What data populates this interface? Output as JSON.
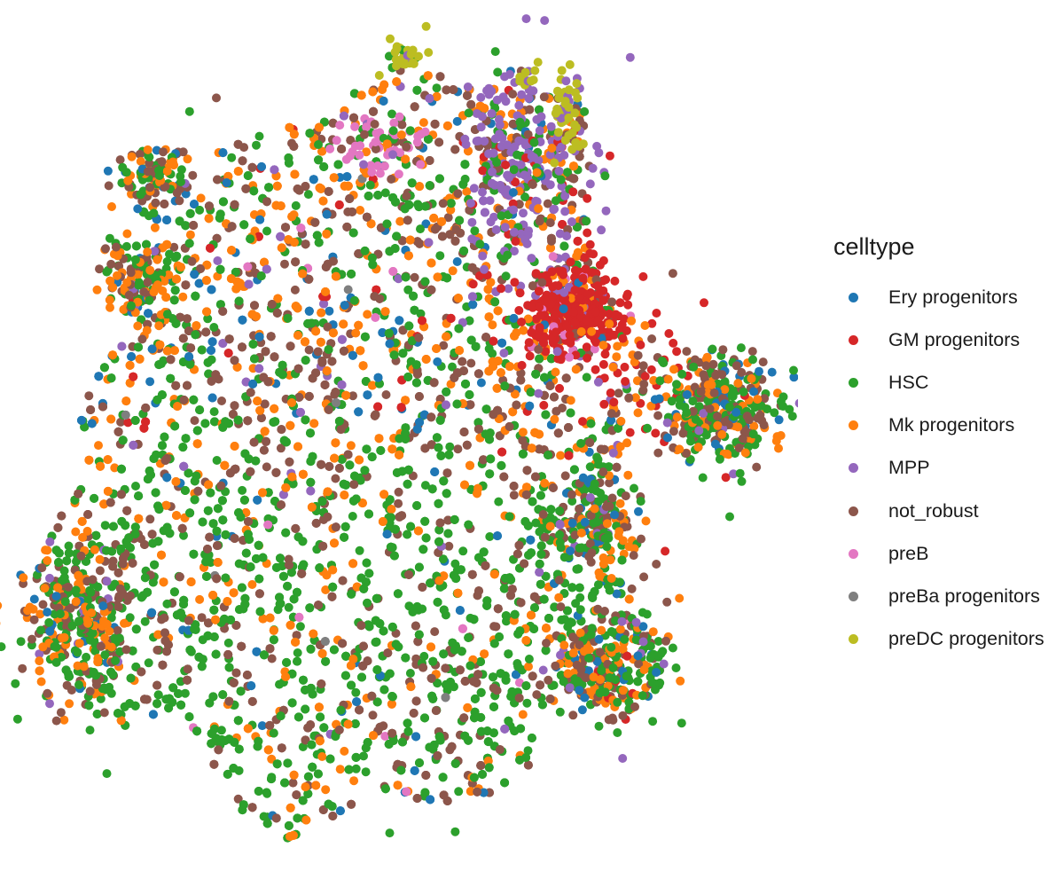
{
  "chart_data": {
    "type": "scatter",
    "title": "",
    "xlabel": "",
    "ylabel": "",
    "axes_visible": false,
    "grid": false,
    "legend_position": "right",
    "legend": {
      "title": "celltype",
      "entries": [
        {
          "label": "Ery progenitors",
          "color": "#1F77B4"
        },
        {
          "label": "GM progenitors",
          "color": "#D62728"
        },
        {
          "label": "HSC",
          "color": "#2CA02C"
        },
        {
          "label": "Mk progenitors",
          "color": "#FF7F0E"
        },
        {
          "label": "MPP",
          "color": "#9467BD"
        },
        {
          "label": "not_robust",
          "color": "#8C564B"
        },
        {
          "label": "preB",
          "color": "#E377C2"
        },
        {
          "label": "preBa progenitors",
          "color": "#7F7F7F"
        },
        {
          "label": "preDC progenitors",
          "color": "#BCBD22"
        }
      ]
    },
    "series": [
      {
        "name": "Ery progenitors",
        "color": "#1F77B4",
        "approx_count": 350
      },
      {
        "name": "GM progenitors",
        "color": "#D62728",
        "approx_count": 480
      },
      {
        "name": "HSC",
        "color": "#2CA02C",
        "approx_count": 3000
      },
      {
        "name": "Mk progenitors",
        "color": "#FF7F0E",
        "approx_count": 1800
      },
      {
        "name": "MPP",
        "color": "#9467BD",
        "approx_count": 320
      },
      {
        "name": "not_robust",
        "color": "#8C564B",
        "approx_count": 2200
      },
      {
        "name": "preB",
        "color": "#E377C2",
        "approx_count": 70
      },
      {
        "name": "preBa progenitors",
        "color": "#7F7F7F",
        "approx_count": 40
      },
      {
        "name": "preDC progenitors",
        "color": "#BCBD22",
        "approx_count": 50
      }
    ],
    "point_layout_note": "embedding coordinates not printed in image; points are a scatter of the shown cloud"
  }
}
